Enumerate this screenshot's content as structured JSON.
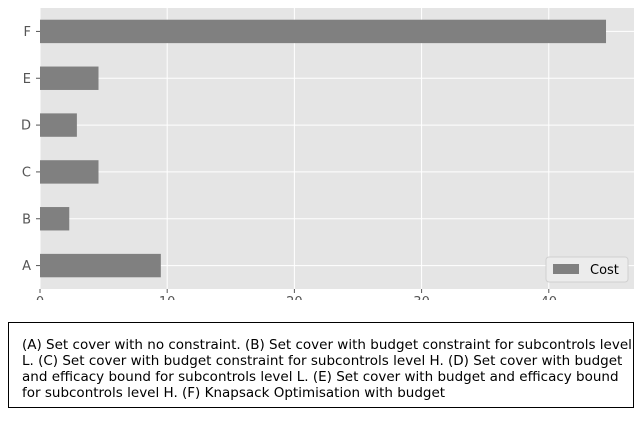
{
  "chart_data": {
    "type": "bar",
    "orientation": "horizontal",
    "categories": [
      "A",
      "B",
      "C",
      "D",
      "E",
      "F"
    ],
    "series": [
      {
        "name": "Cost",
        "values": [
          9.5,
          2.3,
          4.6,
          2.9,
          4.6,
          44.5
        ],
        "color": "#808080"
      }
    ],
    "xlim": [
      0,
      46.7
    ],
    "xticks": [
      "0",
      "10",
      "20",
      "30",
      "40"
    ],
    "grid": true,
    "legend_position": "bottom-right",
    "background": "#e5e5e5"
  },
  "caption": "(A) Set cover with no constraint. (B) Set cover with budget constraint for subcontrols level L. (C) Set cover with budget constraint for subcontrols level H. (D) Set cover with budget and efficacy bound for subcontrols level L. (E) Set cover with budget and efficacy bound for subcontrols level H. (F) Knapsack Optimisation with budget"
}
